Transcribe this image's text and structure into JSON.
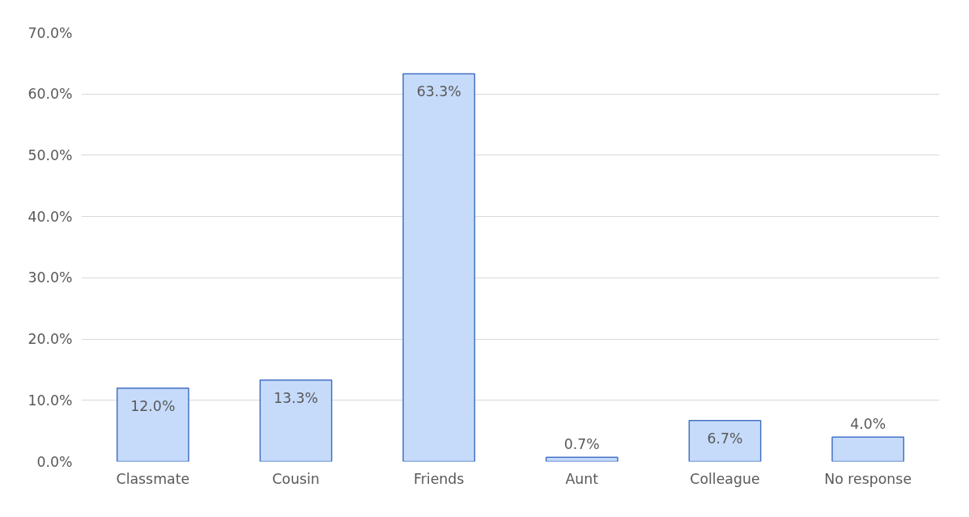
{
  "chart_data": {
    "type": "bar",
    "categories": [
      "Classmate",
      "Cousin",
      "Friends",
      "Aunt",
      "Colleague",
      "No response"
    ],
    "values": [
      12.0,
      13.3,
      63.3,
      0.7,
      6.7,
      4.0
    ],
    "value_labels": [
      "12.0%",
      "13.3%",
      "63.3%",
      "0.7%",
      "6.7%",
      "4.0%"
    ],
    "color": "#c6dbfa",
    "ylim": [
      0,
      70
    ],
    "yticks": [
      {
        "value": 0,
        "label": "0.0%"
      },
      {
        "value": 10,
        "label": "10.0%"
      },
      {
        "value": 20,
        "label": "20.0%"
      },
      {
        "value": 30,
        "label": "30.0%"
      },
      {
        "value": 40,
        "label": "40.0%"
      },
      {
        "value": 50,
        "label": "50.0%"
      },
      {
        "value": 60,
        "label": "60.0%"
      },
      {
        "value": 70,
        "label": "70.0%"
      }
    ],
    "grid": "y"
  }
}
